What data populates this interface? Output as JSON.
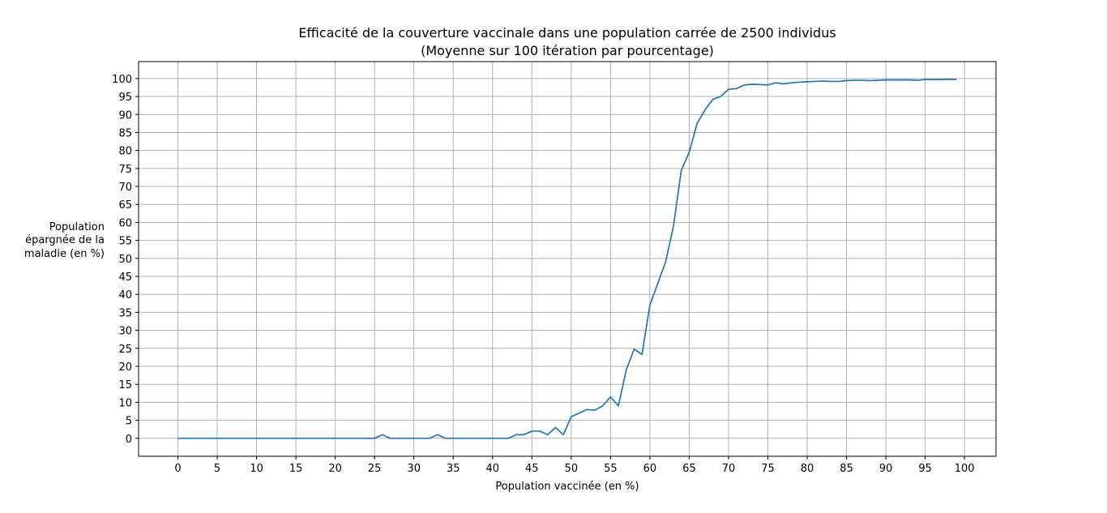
{
  "chart_data": {
    "type": "line",
    "title": "Efficacité de la couverture vaccinale dans une population carrée de 2500 individus",
    "subtitle": "(Moyenne sur 100 itération par pourcentage)",
    "xlabel": "Population vaccinée (en %)",
    "ylabel_lines": [
      "Population",
      "épargnée de la",
      "maladie (en %)"
    ],
    "xlim": [
      -5,
      104
    ],
    "ylim": [
      -5,
      104.7
    ],
    "xticks": [
      0,
      5,
      10,
      15,
      20,
      25,
      30,
      35,
      40,
      45,
      50,
      55,
      60,
      65,
      70,
      75,
      80,
      85,
      90,
      95,
      100
    ],
    "yticks": [
      0,
      5,
      10,
      15,
      20,
      25,
      30,
      35,
      40,
      45,
      50,
      55,
      60,
      65,
      70,
      75,
      80,
      85,
      90,
      95,
      100
    ],
    "grid": true,
    "legend": "none",
    "series": [
      {
        "color": "#1f77b4",
        "x": [
          0,
          1,
          2,
          3,
          4,
          5,
          6,
          7,
          8,
          9,
          10,
          11,
          12,
          13,
          14,
          15,
          16,
          17,
          18,
          19,
          20,
          21,
          22,
          23,
          24,
          25,
          26,
          27,
          28,
          29,
          30,
          31,
          32,
          33,
          34,
          35,
          36,
          37,
          38,
          39,
          40,
          41,
          42,
          43,
          44,
          45,
          46,
          47,
          48,
          49,
          50,
          51,
          52,
          53,
          54,
          55,
          56,
          57,
          58,
          59,
          60,
          61,
          62,
          63,
          64,
          65,
          66,
          67,
          68,
          69,
          70,
          71,
          72,
          73,
          74,
          75,
          76,
          77,
          78,
          79,
          80,
          81,
          82,
          83,
          84,
          85,
          86,
          87,
          88,
          89,
          90,
          91,
          92,
          93,
          94,
          95,
          96,
          97,
          98,
          99
        ],
        "y": [
          0,
          0,
          0,
          0,
          0,
          0,
          0,
          0,
          0,
          0,
          0,
          0,
          0,
          0,
          0,
          0,
          0,
          0,
          0,
          0,
          0,
          0,
          0,
          0,
          0,
          0,
          1,
          0,
          0,
          0,
          0,
          0,
          0,
          1,
          0,
          0,
          0,
          0,
          0,
          0,
          0,
          0,
          0,
          1,
          1,
          2,
          2,
          1,
          3,
          1,
          6,
          7,
          8,
          7.8,
          9,
          11.5,
          9,
          19,
          24.8,
          23.3,
          37,
          43,
          49,
          59,
          74.5,
          79.5,
          87.5,
          91.2,
          94.2,
          95,
          97,
          97.2,
          98.2,
          98.4,
          98.3,
          98.2,
          98.8,
          98.5,
          98.8,
          99,
          99.1,
          99.2,
          99.3,
          99.2,
          99.2,
          99.4,
          99.5,
          99.5,
          99.4,
          99.5,
          99.6,
          99.6,
          99.6,
          99.6,
          99.5,
          99.7,
          99.7,
          99.7,
          99.8,
          99.7
        ]
      }
    ]
  }
}
